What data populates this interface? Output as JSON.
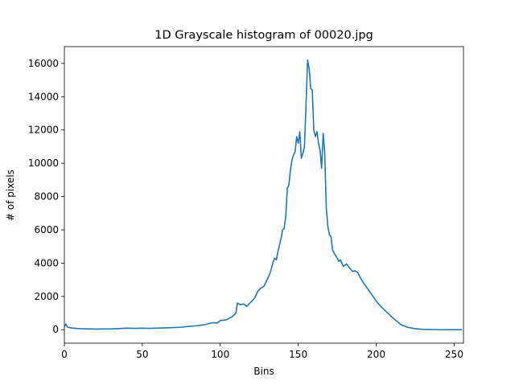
{
  "chart_data": {
    "type": "line",
    "title": "1D Grayscale histogram of 00020.jpg",
    "x_label": "Bins",
    "y_label": "# of pixels",
    "x": [
      0,
      1,
      2,
      5,
      10,
      20,
      30,
      35,
      40,
      45,
      50,
      55,
      60,
      65,
      70,
      75,
      80,
      85,
      90,
      95,
      98,
      100,
      104,
      107,
      109,
      110,
      111,
      113,
      115,
      117,
      120,
      122,
      124,
      126,
      128,
      130,
      132,
      134,
      135,
      136,
      137,
      139,
      140,
      141,
      142,
      143,
      144,
      145,
      146,
      147,
      148,
      149,
      150,
      151,
      152,
      153,
      154,
      155,
      156,
      157,
      158,
      159,
      160,
      161,
      162,
      163,
      164,
      165,
      166,
      167,
      168,
      169,
      170,
      171,
      172,
      173,
      175,
      176,
      177,
      179,
      181,
      183,
      185,
      186,
      188,
      190,
      192,
      195,
      198,
      201,
      204,
      208,
      212,
      216,
      220,
      225,
      230,
      240,
      250,
      255
    ],
    "series": [
      {
        "name": "grayscale",
        "color": "#1f77b4",
        "values": [
          200,
          330,
          150,
          100,
          60,
          40,
          50,
          70,
          90,
          80,
          90,
          80,
          100,
          110,
          130,
          150,
          200,
          240,
          300,
          420,
          400,
          550,
          600,
          750,
          900,
          1000,
          1600,
          1500,
          1550,
          1400,
          1700,
          1900,
          2300,
          2500,
          2600,
          3000,
          3400,
          4100,
          4300,
          4200,
          4700,
          5500,
          6000,
          6100,
          6800,
          8500,
          8700,
          9600,
          10200,
          10500,
          10700,
          11600,
          11200,
          11900,
          10300,
          10600,
          11000,
          13500,
          16200,
          15700,
          14500,
          14400,
          12000,
          11600,
          11900,
          11200,
          10800,
          9700,
          11800,
          10600,
          7300,
          6200,
          5700,
          5600,
          4800,
          4600,
          4300,
          4100,
          4200,
          3800,
          3950,
          3700,
          3500,
          3550,
          3450,
          3100,
          2800,
          2400,
          2000,
          1600,
          1300,
          950,
          600,
          300,
          150,
          60,
          20,
          5,
          0,
          0
        ]
      }
    ],
    "xlim": [
      0,
      256
    ],
    "ylim": [
      -810,
      17010
    ],
    "xticks": [
      0,
      50,
      100,
      150,
      200,
      250
    ],
    "yticks": [
      0,
      2000,
      4000,
      6000,
      8000,
      10000,
      12000,
      14000,
      16000
    ]
  }
}
